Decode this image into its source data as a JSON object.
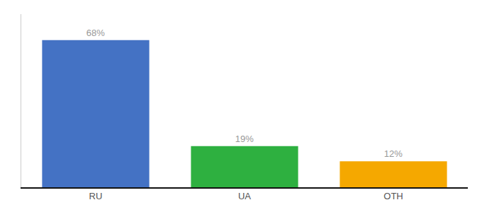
{
  "chart_data": {
    "type": "bar",
    "categories": [
      "RU",
      "UA",
      "OTH"
    ],
    "values": [
      68,
      19,
      12
    ],
    "value_labels": [
      "68%",
      "19%",
      "12%"
    ],
    "colors": [
      "#4472c4",
      "#2eb040",
      "#f5a800"
    ],
    "ylim": [
      0,
      80
    ],
    "yticks": [],
    "data_labels": true,
    "tick_labels": "x",
    "grid": false
  }
}
